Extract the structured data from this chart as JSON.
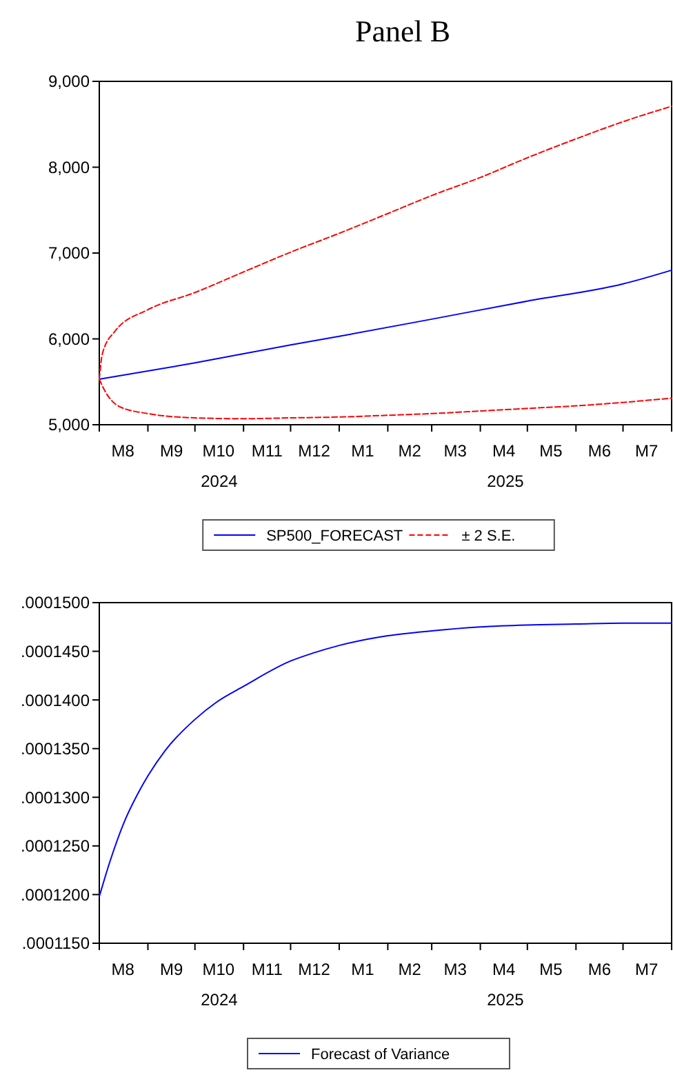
{
  "chart_data": [
    {
      "type": "line",
      "title": "Panel B",
      "xlim": [
        "2024-08-01",
        "2025-08-01"
      ],
      "xticks": [
        {
          "value": "2024-08-01",
          "label": null
        },
        {
          "value": "2024-08-16",
          "label": "M8"
        },
        {
          "value": "2024-09-01",
          "label": null
        },
        {
          "value": "2024-09-16",
          "label": "M9"
        },
        {
          "value": "2024-10-01",
          "label": null
        },
        {
          "value": "2024-10-16",
          "label": "M10"
        },
        {
          "value": "2024-11-01",
          "label": null
        },
        {
          "value": "2024-11-16",
          "label": "M11"
        },
        {
          "value": "2024-12-01",
          "label": null
        },
        {
          "value": "2024-12-16",
          "label": "M12"
        },
        {
          "value": "2025-01-01",
          "label": null
        },
        {
          "value": "2025-01-16",
          "label": "M1"
        },
        {
          "value": "2025-02-01",
          "label": null
        },
        {
          "value": "2025-02-15",
          "label": "M2"
        },
        {
          "value": "2025-03-01",
          "label": null
        },
        {
          "value": "2025-03-16",
          "label": "M3"
        },
        {
          "value": "2025-04-01",
          "label": null
        },
        {
          "value": "2025-04-16",
          "label": "M4"
        },
        {
          "value": "2025-05-01",
          "label": null
        },
        {
          "value": "2025-05-16",
          "label": "M5"
        },
        {
          "value": "2025-06-01",
          "label": null
        },
        {
          "value": "2025-06-16",
          "label": "M6"
        },
        {
          "value": "2025-07-01",
          "label": null
        },
        {
          "value": "2025-07-16",
          "label": "M7"
        },
        {
          "value": "2025-08-01",
          "label": null
        }
      ],
      "ylim": [
        5000,
        9000
      ],
      "yticks": [
        {
          "value": 5000,
          "label": "5,000"
        },
        {
          "value": 6000,
          "label": "6,000"
        },
        {
          "value": 7000,
          "label": "7,000"
        },
        {
          "value": 8000,
          "label": "8,000"
        },
        {
          "value": 9000,
          "label": "9,000"
        }
      ],
      "legend": "bottom",
      "grid": false,
      "annotations": [
        "2024",
        "2025"
      ],
      "series": [
        {
          "name": "SP500_FORECAST",
          "color": "#0000ff",
          "line_style": "solid",
          "x": [
            "2024-08-01",
            "2024-10-01",
            "2024-12-01",
            "2025-01-01",
            "2025-03-01",
            "2025-05-01",
            "2025-07-01",
            "2025-08-01"
          ],
          "values": [
            5530,
            5720,
            5930,
            6030,
            6230,
            6440,
            6640,
            6800
          ]
        },
        {
          "name": "± 2 S.E.",
          "color": "#ff0000",
          "line_style": "dashed",
          "x": [
            "2024-08-01",
            "2024-08-03",
            "2024-08-11",
            "2024-09-01",
            "2024-10-01",
            "2024-11-01",
            "2024-12-01",
            "2025-01-01",
            "2025-02-01",
            "2025-03-01",
            "2025-04-01",
            "2025-05-01",
            "2025-06-01",
            "2025-07-01",
            "2025-08-01"
          ],
          "values": [
            5530,
            5830,
            6090,
            6340,
            6540,
            6780,
            7010,
            7230,
            7460,
            7670,
            7880,
            8110,
            8330,
            8530,
            8710
          ]
        },
        {
          "color": "#ff0000",
          "line_style": "dashed",
          "x": [
            "2024-08-01",
            "2024-08-05",
            "2024-08-14",
            "2024-09-01",
            "2024-10-01",
            "2024-11-01",
            "2024-12-01",
            "2025-01-01",
            "2025-02-01",
            "2025-03-01",
            "2025-04-01",
            "2025-05-01",
            "2025-06-01",
            "2025-07-01",
            "2025-08-01"
          ],
          "values": [
            5530,
            5380,
            5210,
            5130,
            5080,
            5070,
            5080,
            5090,
            5110,
            5130,
            5160,
            5190,
            5220,
            5260,
            5310
          ]
        }
      ]
    },
    {
      "type": "line",
      "xlim": [
        "2024-08-01",
        "2025-08-01"
      ],
      "xticks": [
        {
          "value": "2024-08-01",
          "label": null
        },
        {
          "value": "2024-08-16",
          "label": "M8"
        },
        {
          "value": "2024-09-01",
          "label": null
        },
        {
          "value": "2024-09-16",
          "label": "M9"
        },
        {
          "value": "2024-10-01",
          "label": null
        },
        {
          "value": "2024-10-16",
          "label": "M10"
        },
        {
          "value": "2024-11-01",
          "label": null
        },
        {
          "value": "2024-11-16",
          "label": "M11"
        },
        {
          "value": "2024-12-01",
          "label": null
        },
        {
          "value": "2024-12-16",
          "label": "M12"
        },
        {
          "value": "2025-01-01",
          "label": null
        },
        {
          "value": "2025-01-16",
          "label": "M1"
        },
        {
          "value": "2025-02-01",
          "label": null
        },
        {
          "value": "2025-02-15",
          "label": "M2"
        },
        {
          "value": "2025-03-01",
          "label": null
        },
        {
          "value": "2025-03-16",
          "label": "M3"
        },
        {
          "value": "2025-04-01",
          "label": null
        },
        {
          "value": "2025-04-16",
          "label": "M4"
        },
        {
          "value": "2025-05-01",
          "label": null
        },
        {
          "value": "2025-05-16",
          "label": "M5"
        },
        {
          "value": "2025-06-01",
          "label": null
        },
        {
          "value": "2025-06-16",
          "label": "M6"
        },
        {
          "value": "2025-07-01",
          "label": null
        },
        {
          "value": "2025-07-16",
          "label": "M7"
        },
        {
          "value": "2025-08-01",
          "label": null
        }
      ],
      "ylim": [
        0.000115,
        0.00015
      ],
      "yticks": [
        {
          "value": 0.000115,
          "label": ".0001150"
        },
        {
          "value": 0.00012,
          "label": ".0001200"
        },
        {
          "value": 0.000125,
          "label": ".0001250"
        },
        {
          "value": 0.00013,
          "label": ".0001300"
        },
        {
          "value": 0.000135,
          "label": ".0001350"
        },
        {
          "value": 0.00014,
          "label": ".0001400"
        },
        {
          "value": 0.000145,
          "label": ".0001450"
        },
        {
          "value": 0.00015,
          "label": ".0001500"
        }
      ],
      "legend": "bottom",
      "grid": false,
      "annotations": [
        "2024",
        "2025"
      ],
      "series": [
        {
          "name": "Forecast of Variance",
          "color": "#0000ff",
          "line_style": "solid",
          "x": [
            "2024-08-01",
            "2024-08-08",
            "2024-08-17",
            "2024-08-26",
            "2024-09-01",
            "2024-09-12",
            "2024-10-01",
            "2024-10-15",
            "2024-11-01",
            "2024-12-01",
            "2024-12-15",
            "2025-01-01",
            "2025-02-01",
            "2025-03-01",
            "2025-04-01",
            "2025-05-01",
            "2025-06-01",
            "2025-07-01",
            "2025-08-01"
          ],
          "values": [
            0.0001198,
            0.0001235,
            0.0001275,
            0.0001305,
            0.0001322,
            0.0001348,
            0.000138,
            0.0001398,
            0.0001414,
            0.000144,
            0.0001448,
            0.0001456,
            0.0001466,
            0.0001471,
            0.0001475,
            0.0001477,
            0.0001478,
            0.0001479,
            0.0001479
          ]
        }
      ]
    }
  ]
}
